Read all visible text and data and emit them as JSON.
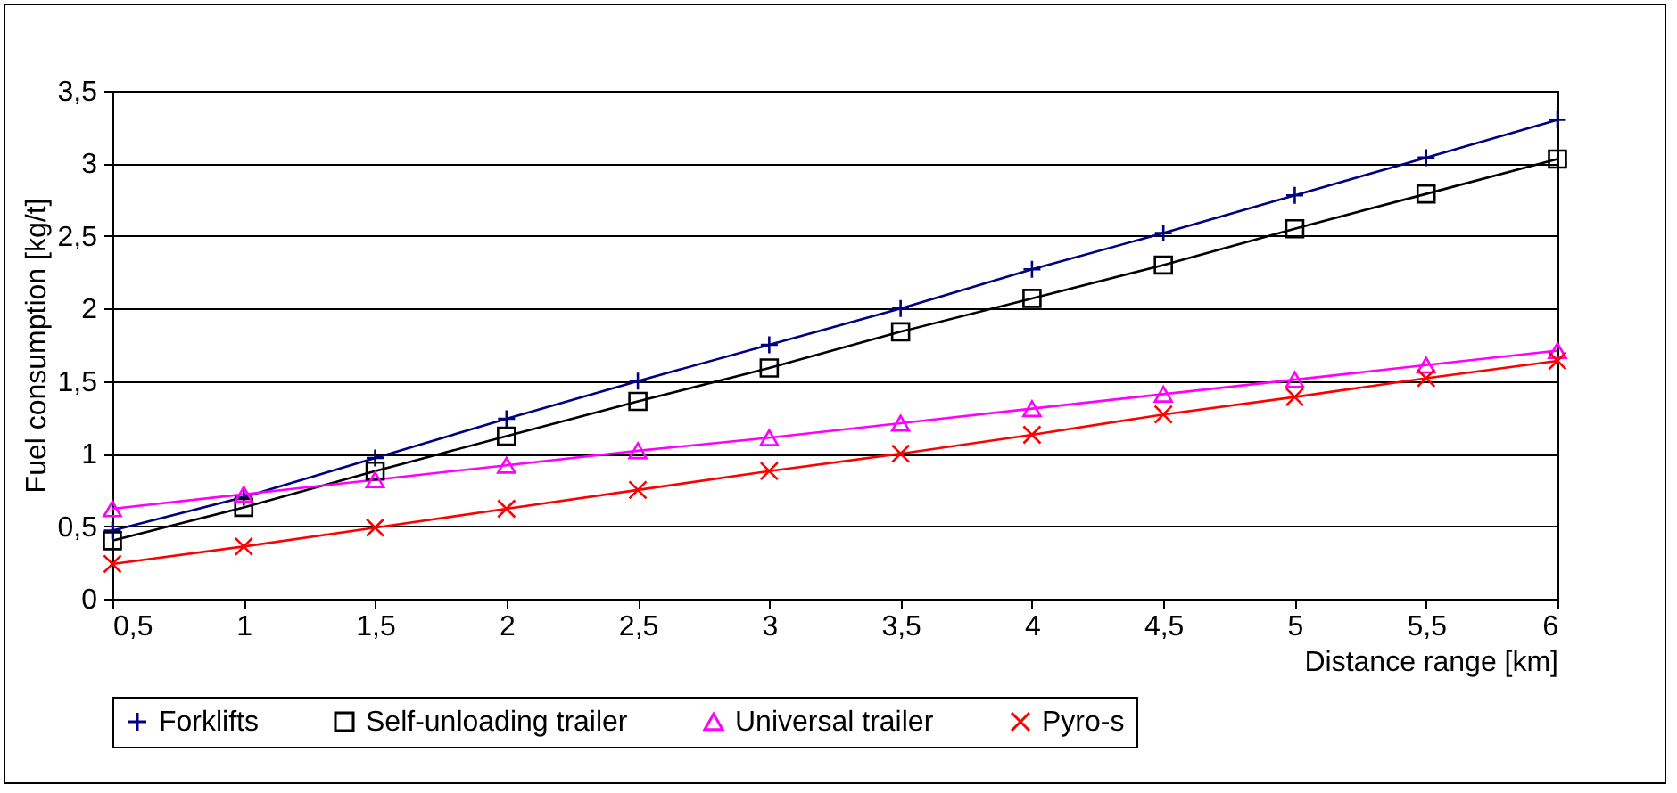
{
  "chart_data": {
    "type": "line",
    "xlabel": "Distance range [km]",
    "ylabel": "Fuel consumption [kg/t]",
    "categories": [
      "0,5",
      "1",
      "1,5",
      "2",
      "2,5",
      "3",
      "3,5",
      "4",
      "4,5",
      "5",
      "5,5",
      "6"
    ],
    "ylim": [
      0,
      3.5
    ],
    "yticks": [
      0,
      {
        "value": 0.5,
        "label": "0,5"
      },
      1,
      {
        "value": 1.5,
        "label": "1,5"
      },
      2,
      {
        "value": 2.5,
        "label": "2,5"
      },
      3,
      {
        "value": 3.5,
        "label": "3,5"
      }
    ],
    "grid": "y",
    "legend": "bottom",
    "line_style": "solid",
    "series": [
      {
        "name": "Forklifts",
        "color": "#000080",
        "marker": "cross",
        "values": [
          0.47,
          0.7,
          0.97,
          1.24,
          1.5,
          1.75,
          2.0,
          2.27,
          2.52,
          2.78,
          3.04,
          3.3
        ]
      },
      {
        "name": "Self-unloading trailer",
        "color": "#000000",
        "marker": "square",
        "values": [
          0.4,
          0.63,
          0.88,
          1.12,
          1.36,
          1.59,
          1.84,
          2.07,
          2.3,
          2.55,
          2.79,
          3.03
        ]
      },
      {
        "name": "Universal trailer",
        "color": "#ff00ff",
        "marker": "triangle",
        "values": [
          0.62,
          0.72,
          0.82,
          0.92,
          1.02,
          1.11,
          1.21,
          1.31,
          1.41,
          1.51,
          1.61,
          1.71
        ]
      },
      {
        "name": "Pyro-s",
        "color": "#ff0000",
        "marker": "x",
        "values": [
          0.24,
          0.36,
          0.49,
          0.62,
          0.75,
          0.88,
          1.0,
          1.13,
          1.27,
          1.39,
          1.52,
          1.64
        ]
      }
    ]
  }
}
